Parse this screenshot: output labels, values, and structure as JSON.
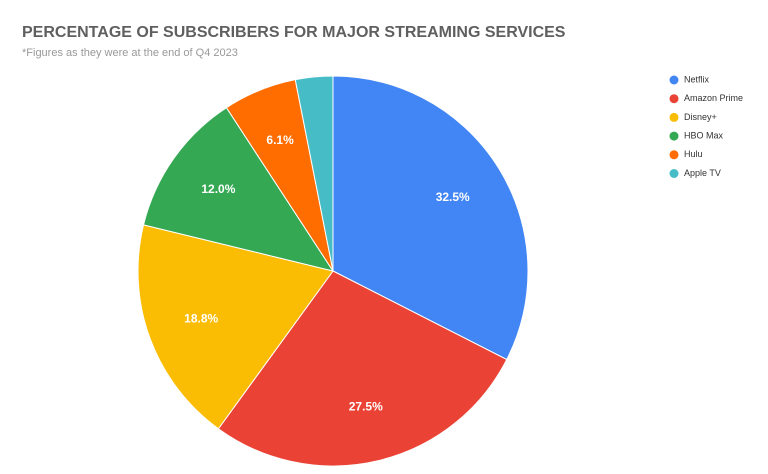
{
  "chart_data": {
    "type": "pie",
    "title": "PERCENTAGE OF SUBSCRIBERS FOR MAJOR STREAMING SERVICES",
    "subtitle": "*Figures as they were at the end of Q4 2023",
    "categories": [
      "Netflix",
      "Amazon Prime",
      "Disney+",
      "HBO Max",
      "Hulu",
      "Apple TV"
    ],
    "values": [
      32.5,
      27.5,
      18.8,
      12.0,
      6.1,
      3.1
    ],
    "value_labels": [
      "32.5%",
      "27.5%",
      "18.8%",
      "12.0%",
      "6.1%",
      null
    ],
    "colors": [
      "#4285f4",
      "#ea4335",
      "#fbbc04",
      "#34a853",
      "#ff6d01",
      "#46bdc6"
    ],
    "legend": "right"
  }
}
